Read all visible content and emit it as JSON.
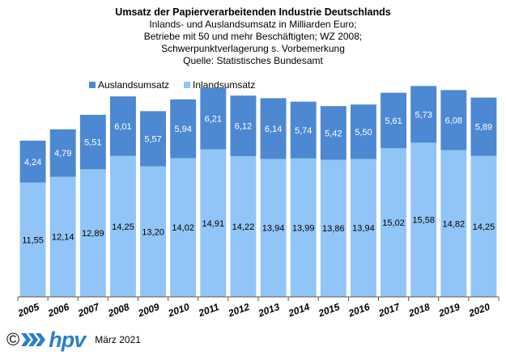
{
  "chart_data": {
    "type": "bar",
    "stacked": true,
    "title": "Umsatz der Papierverarbeitenden Industrie Deutschlands",
    "subtitle_lines": [
      "Inlands- und Auslandsumsatz in Milliarden Euro;",
      "Betriebe mit 50 und mehr Beschäftigten;  WZ 2008;",
      "Schwerpunktverlagerung  s. Vorbemerkung",
      "Quelle: Statistisches Bundesamt"
    ],
    "categories": [
      "2005",
      "2006",
      "2007",
      "2008",
      "2009",
      "2010",
      "2011",
      "2012",
      "2013",
      "2014",
      "2015",
      "2016",
      "2017",
      "2018",
      "2019",
      "2020"
    ],
    "series": [
      {
        "name": "Inlandsumsatz",
        "color": "#92c5f7",
        "values": [
          11.55,
          12.14,
          12.89,
          14.25,
          13.2,
          14.02,
          14.91,
          14.22,
          13.94,
          13.99,
          13.86,
          13.94,
          15.02,
          15.58,
          14.82,
          14.25
        ],
        "labels": [
          "11,55",
          "12,14",
          "12,89",
          "14,25",
          "13,20",
          "14,02",
          "14,91",
          "14,22",
          "13,94",
          "13,99",
          "13,86",
          "13,94",
          "15,02",
          "15,58",
          "14,82",
          "14,25"
        ]
      },
      {
        "name": "Auslandsumsatz",
        "color": "#4d88d2",
        "values": [
          4.24,
          4.79,
          5.51,
          6.01,
          5.57,
          5.94,
          6.21,
          6.12,
          6.14,
          5.74,
          5.42,
          5.5,
          5.61,
          5.73,
          6.08,
          5.89
        ],
        "labels": [
          "4,24",
          "4,79",
          "5,51",
          "6,01",
          "5,57",
          "5,94",
          "6,21",
          "6,12",
          "6,14",
          "5,74",
          "5,42",
          "5,50",
          "5,61",
          "5,73",
          "6,08",
          "5,89"
        ]
      }
    ],
    "legend_order": [
      "Auslandsumsatz",
      "Inlandsumsatz"
    ],
    "legend_position": "top-left",
    "ylim": [
      0,
      21.5
    ],
    "grid": false,
    "xlabel": "",
    "ylabel": ""
  },
  "footer": {
    "copyright": "©",
    "logo_text": "hpv",
    "date": "März 2021"
  }
}
